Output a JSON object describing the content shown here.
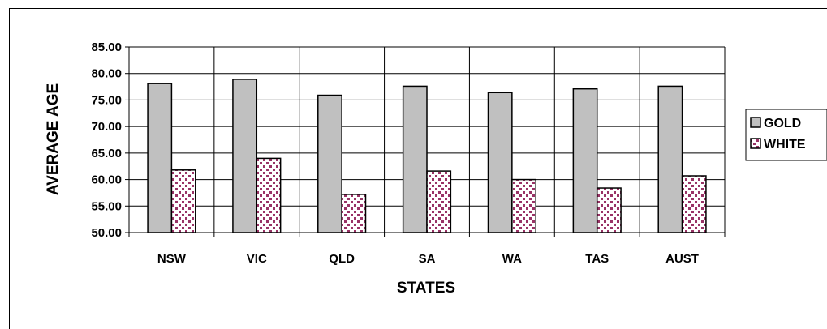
{
  "chart_data": {
    "type": "bar",
    "categories": [
      "NSW",
      "VIC",
      "QLD",
      "SA",
      "WA",
      "TAS",
      "AUST"
    ],
    "series": [
      {
        "name": "GOLD",
        "values": [
          78.1,
          78.9,
          75.9,
          77.6,
          76.4,
          77.1,
          77.6
        ],
        "color": "#c0c0c0",
        "pattern": "solid"
      },
      {
        "name": "WHITE",
        "values": [
          61.8,
          64.0,
          57.2,
          61.6,
          60.0,
          58.4,
          60.7
        ],
        "color": "#993366",
        "pattern": "dots"
      }
    ],
    "title": "",
    "xlabel": "STATES",
    "ylabel": "AVERAGE AGE",
    "ylim": [
      50,
      85
    ],
    "yticks": [
      "50.00",
      "55.00",
      "60.00",
      "65.00",
      "70.00",
      "75.00",
      "80.00",
      "85.00"
    ],
    "grid": true,
    "legend_position": "right"
  }
}
